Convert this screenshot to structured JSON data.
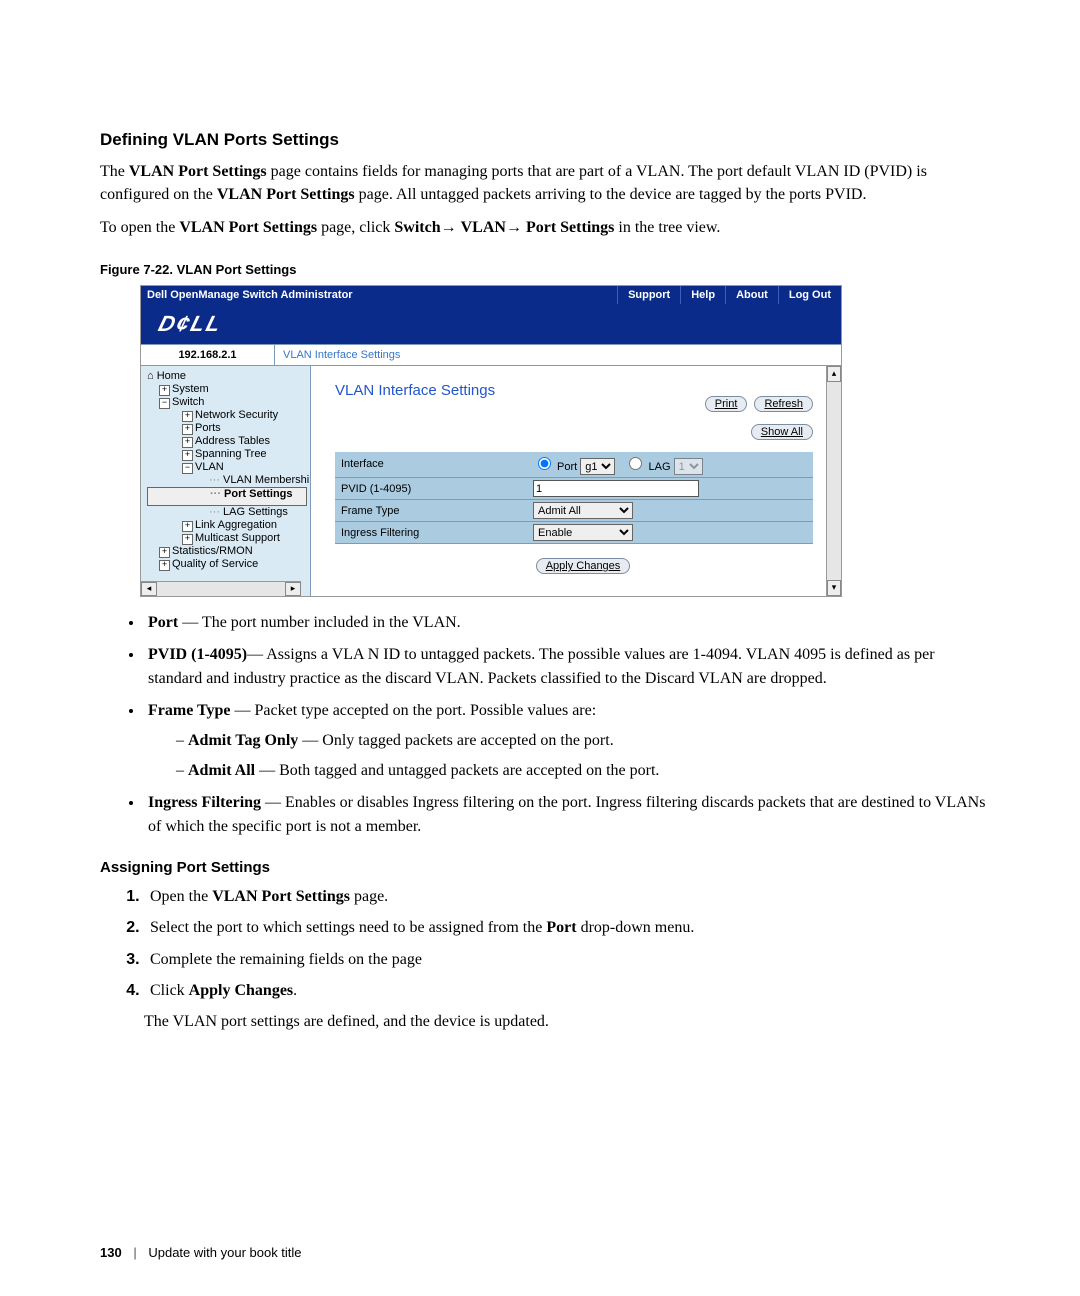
{
  "section_title": "Defining VLAN Ports Settings",
  "intro_p1_pre": "The ",
  "intro_p1_b1": "VLAN Port Settings",
  "intro_p1_mid": " page contains fields for managing ports that are part of a VLAN. The port default VLAN ID (PVID) is configured on the ",
  "intro_p1_b2": "VLAN Port Settings",
  "intro_p1_post": " page. All untagged packets arriving to the device are tagged by the ports PVID.",
  "intro_p2_pre": "To open the ",
  "intro_p2_b1": "VLAN Port Settings",
  "intro_p2_mid": " page, click ",
  "intro_p2_b2": "Switch",
  "intro_p2_arrow1": "→ ",
  "intro_p2_b3": "VLAN",
  "intro_p2_arrow2": "→ ",
  "intro_p2_b4": "Port Settings",
  "intro_p2_post": " in the tree view.",
  "fig_caption": "Figure 7-22.   VLAN Port Settings",
  "shot": {
    "titlebar": {
      "title": "Dell OpenManage Switch Administrator",
      "links": [
        "Support",
        "Help",
        "About",
        "Log Out"
      ]
    },
    "logo": "D¢LL",
    "ip": "192.168.2.1",
    "breadcrumb": "VLAN Interface Settings",
    "tree": {
      "items": [
        {
          "lvl": "lvl0",
          "icn": "",
          "text": "⌂ Home"
        },
        {
          "lvl": "lvl1",
          "icn": "+",
          "text": "System"
        },
        {
          "lvl": "lvl1",
          "icn": "−",
          "text": "Switch"
        },
        {
          "lvl": "lvl2",
          "icn": "+",
          "text": "Network Security"
        },
        {
          "lvl": "lvl2",
          "icn": "+",
          "text": "Ports"
        },
        {
          "lvl": "lvl2",
          "icn": "+",
          "text": "Address Tables"
        },
        {
          "lvl": "lvl2",
          "icn": "+",
          "text": "Spanning Tree"
        },
        {
          "lvl": "lvl2",
          "icn": "−",
          "text": "VLAN"
        },
        {
          "lvl": "lvl3",
          "icn": "",
          "text": "VLAN Membership"
        },
        {
          "lvl": "lvl3",
          "icn": "",
          "text": "Port Settings",
          "sel": true
        },
        {
          "lvl": "lvl3",
          "icn": "",
          "text": "LAG Settings"
        },
        {
          "lvl": "lvl2",
          "icn": "+",
          "text": "Link Aggregation"
        },
        {
          "lvl": "lvl2",
          "icn": "+",
          "text": "Multicast Support"
        },
        {
          "lvl": "lvl1",
          "icn": "+",
          "text": "Statistics/RMON"
        },
        {
          "lvl": "lvl1",
          "icn": "+",
          "text": "Quality of Service"
        }
      ]
    },
    "content": {
      "heading": "VLAN Interface Settings",
      "btn_print": "Print",
      "btn_refresh": "Refresh",
      "btn_showall": "Show All",
      "rows": [
        {
          "label": "Interface",
          "type": "interface",
          "port_label": "Port",
          "port_val": "g1",
          "lag_label": "LAG",
          "lag_val": "1"
        },
        {
          "label": "PVID (1-4095)",
          "type": "text",
          "value": "1"
        },
        {
          "label": "Frame Type",
          "type": "select",
          "value": "Admit All"
        },
        {
          "label": "Ingress Filtering",
          "type": "select",
          "value": "Enable"
        }
      ],
      "apply": "Apply Changes"
    }
  },
  "bullets": [
    {
      "term": "Port",
      "desc": " — The port number included in the VLAN."
    },
    {
      "term": "PVID (1-4095)",
      "desc": "— Assigns a VLA N ID to untagged packets. The possible values are 1-4094. VLAN 4095 is defined as per standard and industry practice as the discard VLAN. Packets classified to the Discard VLAN are dropped."
    },
    {
      "term": "Frame Type",
      "desc": " — Packet type accepted on the port. Possible values are:",
      "sub": [
        {
          "term": "Admit Tag Only",
          "desc": " — Only tagged packets are accepted on the port."
        },
        {
          "term": "Admit All",
          "desc": " — Both tagged and untagged packets are accepted on the port."
        }
      ]
    },
    {
      "term": "Ingress Filtering",
      "desc": " — Enables or disables Ingress filtering on the port. Ingress filtering discards packets that are destined to VLANs of which the specific port is not a member."
    }
  ],
  "sub_title": "Assigning Port Settings",
  "steps": [
    {
      "pre": "Open the ",
      "b": "VLAN Port Settings",
      "post": " page."
    },
    {
      "pre": "Select the port to which settings need to be assigned from the ",
      "b": "Port",
      "post": " drop-down menu."
    },
    {
      "pre": "Complete the remaining fields on the page",
      "b": "",
      "post": ""
    },
    {
      "pre": "Click ",
      "b": "Apply Changes",
      "post": "."
    }
  ],
  "result_line": "The VLAN port settings are defined, and the device is updated.",
  "footer": {
    "page": "130",
    "text": "Update with your book title"
  }
}
